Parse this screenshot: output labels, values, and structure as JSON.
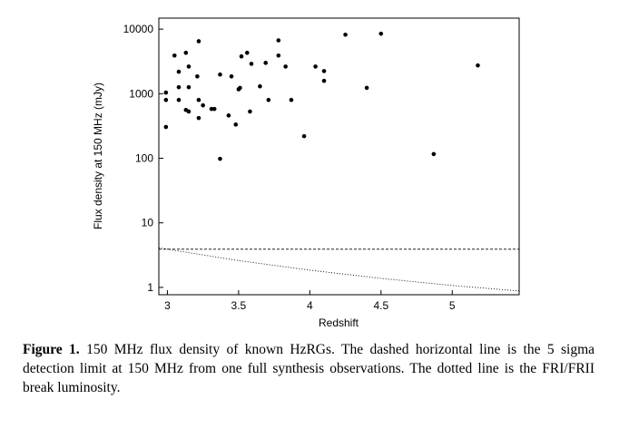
{
  "chart_data": {
    "type": "scatter",
    "xlabel": "Redshift",
    "ylabel": "Flux density at 150 MHz (mJy)",
    "xlim": [
      2.94,
      5.47
    ],
    "ylim": [
      0.77,
      14800
    ],
    "log_y": true,
    "xticks": [
      3,
      3.5,
      4,
      4.5,
      5
    ],
    "yticks": [
      1,
      10,
      100,
      1000,
      10000
    ],
    "series": [
      {
        "type": "scatter",
        "color": "#000000",
        "x": [
          2.99,
          2.99,
          2.99,
          3.05,
          3.08,
          3.08,
          3.08,
          3.13,
          3.15,
          3.13,
          3.15,
          3.15,
          3.22,
          3.21,
          3.22,
          3.22,
          3.25,
          3.31,
          3.33,
          3.37,
          3.37,
          3.43,
          3.45,
          3.48,
          3.5,
          3.51,
          3.52,
          3.56,
          3.59,
          3.58,
          3.65,
          3.69,
          3.71,
          3.78,
          3.78,
          3.83,
          3.87,
          3.96,
          4.04,
          4.1,
          4.1,
          4.25,
          4.4,
          4.5,
          4.87,
          5.18
        ],
        "values": [
          800,
          1040,
          305,
          3900,
          800,
          2190,
          1260,
          4300,
          2630,
          560,
          530,
          1260,
          6500,
          1850,
          800,
          420,
          660,
          580,
          580,
          1980,
          98,
          460,
          1850,
          333,
          1170,
          1230,
          3780,
          4300,
          2900,
          530,
          1300,
          3000,
          800,
          6700,
          3900,
          2630,
          800,
          220,
          2630,
          2240,
          1580,
          8200,
          1230,
          8500,
          116,
          2740
        ]
      },
      {
        "type": "line",
        "style": "dashed",
        "color": "#000000",
        "x": [
          2.94,
          5.47
        ],
        "values": [
          3.9,
          3.9
        ]
      },
      {
        "type": "line",
        "style": "dotted",
        "color": "#000000",
        "x": [
          2.94,
          3.5,
          4,
          4.5,
          5,
          5.47
        ],
        "values": [
          4.1,
          2.6,
          1.85,
          1.38,
          1.07,
          0.88
        ]
      }
    ]
  },
  "caption": {
    "label": "Figure 1.",
    "text": "150 MHz flux density of known HzRGs. The dashed horizontal line is the 5 sigma detection limit at 150 MHz from one full synthesis observations. The dotted line is the FRI/FRII break luminosity."
  }
}
